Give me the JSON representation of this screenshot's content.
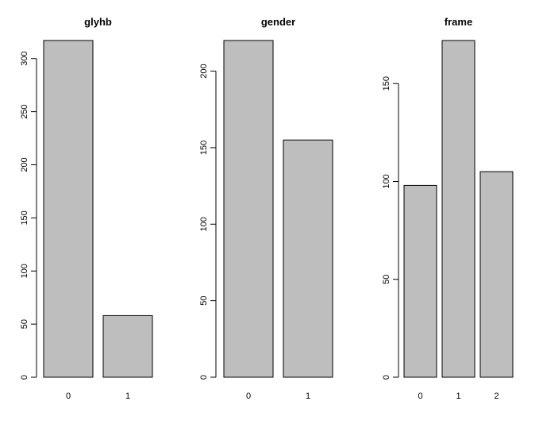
{
  "chart_data": [
    {
      "type": "bar",
      "title": "glyhb",
      "categories": [
        "0",
        "1"
      ],
      "values": [
        317,
        58
      ],
      "ylim": [
        0,
        317
      ],
      "yticks": [
        0,
        50,
        100,
        150,
        200,
        250,
        300
      ],
      "bar_color": "#bebebe"
    },
    {
      "type": "bar",
      "title": "gender",
      "categories": [
        "0",
        "1"
      ],
      "values": [
        220,
        155
      ],
      "ylim": [
        0,
        220
      ],
      "yticks": [
        0,
        50,
        100,
        150,
        200
      ],
      "bar_color": "#bebebe"
    },
    {
      "type": "bar",
      "title": "frame",
      "categories": [
        "0",
        "1",
        "2"
      ],
      "values": [
        98,
        172,
        105
      ],
      "ylim": [
        0,
        172
      ],
      "yticks": [
        0,
        50,
        100,
        150
      ],
      "bar_color": "#bebebe"
    }
  ]
}
